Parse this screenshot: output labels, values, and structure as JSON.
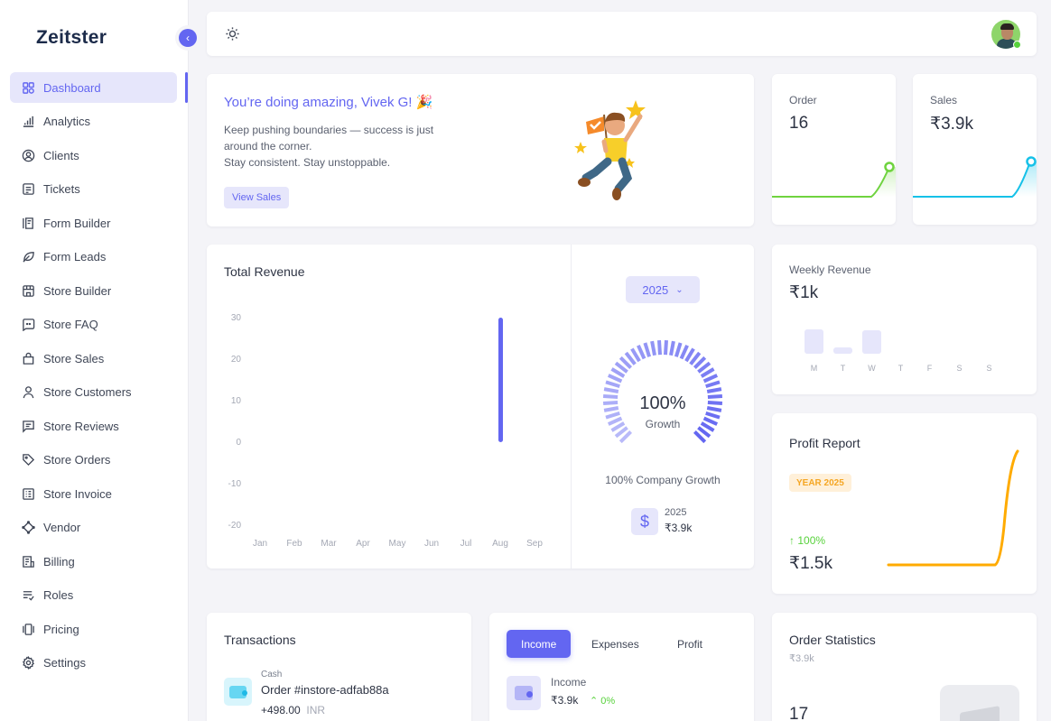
{
  "app": {
    "name": "Zeitster",
    "logo_text": "Zeitster"
  },
  "sidebar": {
    "collapse_icon": "chevron-left-icon",
    "items": [
      {
        "label": "Dashboard",
        "icon": "grid-icon",
        "active": true
      },
      {
        "label": "Analytics",
        "icon": "bar-chart-icon"
      },
      {
        "label": "Clients",
        "icon": "user-circle-icon"
      },
      {
        "label": "Tickets",
        "icon": "ticket-icon"
      },
      {
        "label": "Form Builder",
        "icon": "form-icon"
      },
      {
        "label": "Form Leads",
        "icon": "leaf-icon"
      },
      {
        "label": "Store Builder",
        "icon": "store-icon"
      },
      {
        "label": "Store FAQ",
        "icon": "faq-icon"
      },
      {
        "label": "Store Sales",
        "icon": "bag-icon"
      },
      {
        "label": "Store Customers",
        "icon": "user-icon"
      },
      {
        "label": "Store Reviews",
        "icon": "message-icon"
      },
      {
        "label": "Store Orders",
        "icon": "tag-icon"
      },
      {
        "label": "Store Invoice",
        "icon": "invoice-icon"
      },
      {
        "label": "Vendor",
        "icon": "vendor-icon"
      },
      {
        "label": "Billing",
        "icon": "billing-icon"
      },
      {
        "label": "Roles",
        "icon": "list-check-icon"
      },
      {
        "label": "Pricing",
        "icon": "pricing-icon"
      },
      {
        "label": "Settings",
        "icon": "gear-icon"
      }
    ]
  },
  "topbar": {
    "theme_icon": "sun-icon",
    "avatar": "user-avatar",
    "status": "online"
  },
  "welcome": {
    "title": "You’re doing amazing, Vivek G! 🎉",
    "line1": "Keep pushing boundaries — success is just around the corner.",
    "line2": "Stay consistent. Stay unstoppable.",
    "button": "View Sales"
  },
  "order_card": {
    "label": "Order",
    "value": "16",
    "color": "#6fd33f"
  },
  "sales_card": {
    "label": "Sales",
    "value": "₹3.9k",
    "color": "#16c1e8"
  },
  "total_revenue": {
    "title": "Total Revenue",
    "year_select": "2025",
    "gauge_value": "100%",
    "gauge_label": "Growth",
    "growth_text": "100% Company Growth",
    "summary_year": "2025",
    "summary_value": "₹3.9k"
  },
  "weekly_revenue": {
    "label": "Weekly Revenue",
    "value": "₹1k",
    "days": [
      "M",
      "T",
      "W",
      "T",
      "F",
      "S",
      "S"
    ]
  },
  "profit_report": {
    "title": "Profit Report",
    "badge": "YEAR 2025",
    "change": "100%",
    "value": "₹1.5k",
    "color": "#ffab00"
  },
  "transactions": {
    "title": "Transactions",
    "items": [
      {
        "method": "Cash",
        "order": "Order #instore-adfab88a",
        "amount": "+498.00",
        "currency": "INR"
      }
    ]
  },
  "income_panel": {
    "tabs": [
      "Income",
      "Expenses",
      "Profit"
    ],
    "active_tab": "Income",
    "label": "Income",
    "value": "₹3.9k",
    "change": "0%"
  },
  "order_statistics": {
    "title": "Order Statistics",
    "subtitle": "₹3.9k",
    "count": "17"
  },
  "chart_data": [
    {
      "type": "bar",
      "title": "Total Revenue",
      "categories": [
        "Jan",
        "Feb",
        "Mar",
        "Apr",
        "May",
        "Jun",
        "Jul",
        "Aug",
        "Sep"
      ],
      "series": [
        {
          "name": "2025",
          "values": [
            0,
            0,
            0,
            0,
            0,
            0,
            0,
            30,
            0
          ],
          "color": "#6366f1"
        }
      ],
      "yticks": [
        30,
        20,
        10,
        0,
        -10,
        -20
      ],
      "ylim": [
        -20,
        30
      ],
      "grid": false
    },
    {
      "type": "bar",
      "title": "Weekly Revenue",
      "categories": [
        "M",
        "T",
        "W",
        "T",
        "F",
        "S",
        "S"
      ],
      "values": [
        28,
        7,
        26,
        0,
        0,
        0,
        0
      ]
    },
    {
      "type": "line",
      "title": "Order",
      "values": [
        0,
        0,
        0,
        0,
        0,
        0,
        0,
        16
      ]
    },
    {
      "type": "line",
      "title": "Sales",
      "values": [
        0,
        0,
        0,
        0,
        0,
        0,
        0,
        3.9
      ]
    },
    {
      "type": "line",
      "title": "Profit Report",
      "values": [
        0,
        0,
        0,
        0,
        0,
        0,
        0,
        1.5
      ]
    }
  ]
}
